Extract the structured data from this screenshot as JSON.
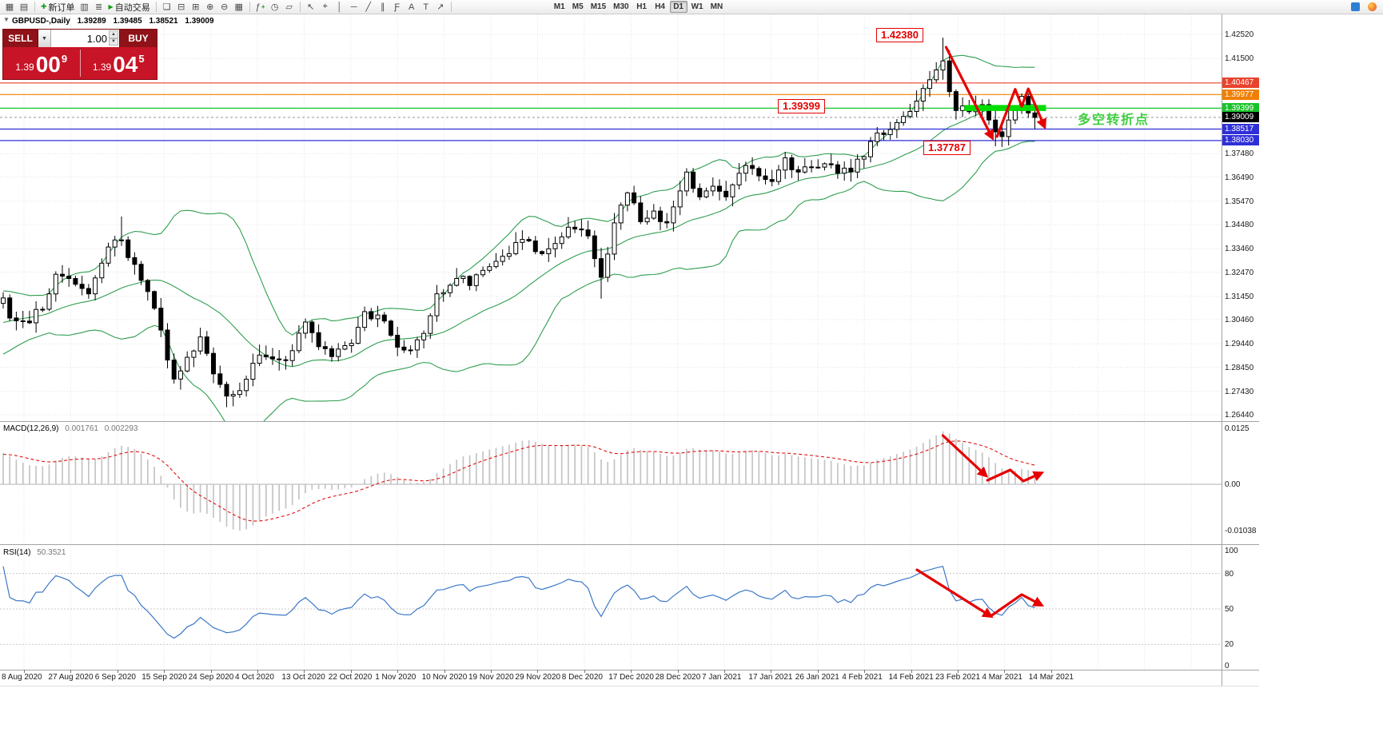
{
  "toolbar": {
    "new_order": "新订单",
    "autotrading": "自动交易",
    "timeframes": [
      "M1",
      "M5",
      "M15",
      "M30",
      "H1",
      "H4",
      "D1",
      "W1",
      "MN"
    ],
    "active_timeframe": "D1"
  },
  "one_click": {
    "sell_label": "SELL",
    "buy_label": "BUY",
    "volume": "1.00",
    "sell_price": {
      "prefix": "1.39",
      "big": "00",
      "sup": "9"
    },
    "buy_price": {
      "prefix": "1.39",
      "big": "04",
      "sup": "5"
    }
  },
  "header": {
    "symbol": "GBPUSD-,Daily",
    "open": "1.39289",
    "high": "1.39485",
    "low": "1.38521",
    "close": "1.39009"
  },
  "annotations": {
    "peak_label": "1.42380",
    "pivot_label": "1.39399",
    "trough_label": "1.37787",
    "note": "多空转折点"
  },
  "macd_panel": {
    "name": "MACD(12,26,9)",
    "value_main": "0.001761",
    "value_signal": "0.002293",
    "scale": [
      "0.0125",
      "0.00",
      "-0.01038"
    ]
  },
  "rsi_panel": {
    "name": "RSI(14)",
    "value": "50.3521",
    "scale": [
      "100",
      "80",
      "50",
      "20",
      "0"
    ],
    "levels": [
      80,
      50,
      20
    ]
  },
  "price_scale": {
    "ticks": [
      "1.42520",
      "1.41500",
      "1.37480",
      "1.36490",
      "1.35470",
      "1.34480",
      "1.33460",
      "1.32470",
      "1.31450",
      "1.30460",
      "1.29440",
      "1.28450",
      "1.27430",
      "1.26440"
    ],
    "tick_values": [
      1.4252,
      1.415,
      1.3748,
      1.3649,
      1.3547,
      1.3448,
      1.3346,
      1.3247,
      1.3145,
      1.3046,
      1.2944,
      1.2845,
      1.2743,
      1.2644
    ],
    "levels": [
      {
        "label": "1.40467",
        "value": 1.40467,
        "color": "#e8432d"
      },
      {
        "label": "1.39977",
        "value": 1.39977,
        "color": "#f07f00"
      },
      {
        "label": "1.39399",
        "value": 1.39399,
        "color": "#18c32a"
      },
      {
        "label": "1.39009",
        "value": 1.39009,
        "color": "#000000",
        "bid": true
      },
      {
        "label": "1.38517",
        "value": 1.38517,
        "color": "#2f2fd8"
      },
      {
        "label": "1.38030",
        "value": 1.3803,
        "color": "#2f2fd8"
      }
    ]
  },
  "time_axis": [
    "8 Aug 2020",
    "27 Aug 2020",
    "6 Sep 2020",
    "15 Sep 2020",
    "24 Sep 2020",
    "4 Oct 2020",
    "13 Oct 2020",
    "22 Oct 2020",
    "1 Nov 2020",
    "10 Nov 2020",
    "19 Nov 2020",
    "29 Nov 2020",
    "8 Dec 2020",
    "17 Dec 2020",
    "28 Dec 2020",
    "7 Jan 2021",
    "17 Jan 2021",
    "26 Jan 2021",
    "4 Feb 2021",
    "14 Feb 2021",
    "23 Feb 2021",
    "4 Mar 2021",
    "14 Mar 2021"
  ],
  "chart_data": {
    "type": "candlestick",
    "symbol": "GBPUSD",
    "timeframe": "Daily",
    "ylim": [
      1.2644,
      1.4252
    ],
    "count": 158,
    "anchors": [
      [
        0,
        1.3138
      ],
      [
        1,
        1.3053
      ],
      [
        3,
        1.304
      ],
      [
        6,
        1.309
      ],
      [
        8,
        1.3238
      ],
      [
        10,
        1.322
      ],
      [
        13,
        1.3155
      ],
      [
        16,
        1.3353
      ],
      [
        18,
        1.3383
      ],
      [
        20,
        1.328
      ],
      [
        22,
        1.3165
      ],
      [
        24,
        1.3002
      ],
      [
        26,
        1.2795
      ],
      [
        28,
        1.2887
      ],
      [
        30,
        1.2973
      ],
      [
        32,
        1.2817
      ],
      [
        34,
        1.2723
      ],
      [
        36,
        1.2746
      ],
      [
        38,
        1.2862
      ],
      [
        40,
        1.2889
      ],
      [
        43,
        1.2873
      ],
      [
        46,
        1.3036
      ],
      [
        48,
        1.2932
      ],
      [
        50,
        1.289
      ],
      [
        53,
        1.2946
      ],
      [
        55,
        1.308
      ],
      [
        58,
        1.304
      ],
      [
        60,
        1.293
      ],
      [
        62,
        1.2918
      ],
      [
        64,
        1.2988
      ],
      [
        66,
        1.3155
      ],
      [
        67,
        1.316
      ],
      [
        69,
        1.322
      ],
      [
        71,
        1.319
      ],
      [
        74,
        1.327
      ],
      [
        77,
        1.3325
      ],
      [
        79,
        1.3385
      ],
      [
        82,
        1.3325
      ],
      [
        84,
        1.3368
      ],
      [
        86,
        1.3437
      ],
      [
        89,
        1.34
      ],
      [
        91,
        1.3225
      ],
      [
        93,
        1.3455
      ],
      [
        95,
        1.3582
      ],
      [
        97,
        1.346
      ],
      [
        99,
        1.3505
      ],
      [
        101,
        1.3455
      ],
      [
        104,
        1.367
      ],
      [
        106,
        1.3565
      ],
      [
        108,
        1.361
      ],
      [
        110,
        1.3565
      ],
      [
        112,
        1.3665
      ],
      [
        114,
        1.3685
      ],
      [
        117,
        1.363
      ],
      [
        119,
        1.373
      ],
      [
        121,
        1.367
      ],
      [
        123,
        1.369
      ],
      [
        125,
        1.3705
      ],
      [
        127,
        1.3665
      ],
      [
        129,
        1.367
      ],
      [
        131,
        1.3735
      ],
      [
        133,
        1.3835
      ],
      [
        135,
        1.385
      ],
      [
        137,
        1.3905
      ],
      [
        139,
        1.397
      ],
      [
        141,
        1.406
      ],
      [
        143,
        1.414
      ],
      [
        144,
        1.401
      ],
      [
        145,
        1.393
      ],
      [
        147,
        1.3925
      ],
      [
        148,
        1.395
      ],
      [
        149,
        1.3955
      ],
      [
        150,
        1.389
      ],
      [
        151,
        1.384
      ],
      [
        152,
        1.382
      ],
      [
        153,
        1.389
      ],
      [
        154,
        1.393
      ],
      [
        155,
        1.399
      ],
      [
        156,
        1.392
      ],
      [
        157,
        1.3901
      ]
    ],
    "specials": {
      "18": {
        "high": 1.3482
      },
      "34": {
        "low": 1.2676
      },
      "91": {
        "low": 1.3135
      },
      "104": {
        "high": 1.3686
      },
      "143": {
        "high": 1.4238
      },
      "151": {
        "low": 1.37787
      },
      "157": {
        "high": 1.39485,
        "low": 1.38521
      }
    },
    "indicators": [
      {
        "type": "bollinger",
        "period": 20,
        "deviation": 2
      },
      {
        "type": "macd",
        "fast": 12,
        "slow": 26,
        "signal": 9
      },
      {
        "type": "rsi",
        "period": 14,
        "levels": [
          80,
          50,
          20
        ]
      }
    ]
  },
  "colors": {
    "bull": "#ffffff",
    "bear": "#000000",
    "bollinger": "#2f9e4f",
    "macd_hist": "#c4c4c4",
    "macd_signal": "#e01010",
    "rsi_line": "#3c78c8",
    "annotation": "#e60000",
    "note_green": "#3ecf3e",
    "bar_green": "#00dd00"
  }
}
